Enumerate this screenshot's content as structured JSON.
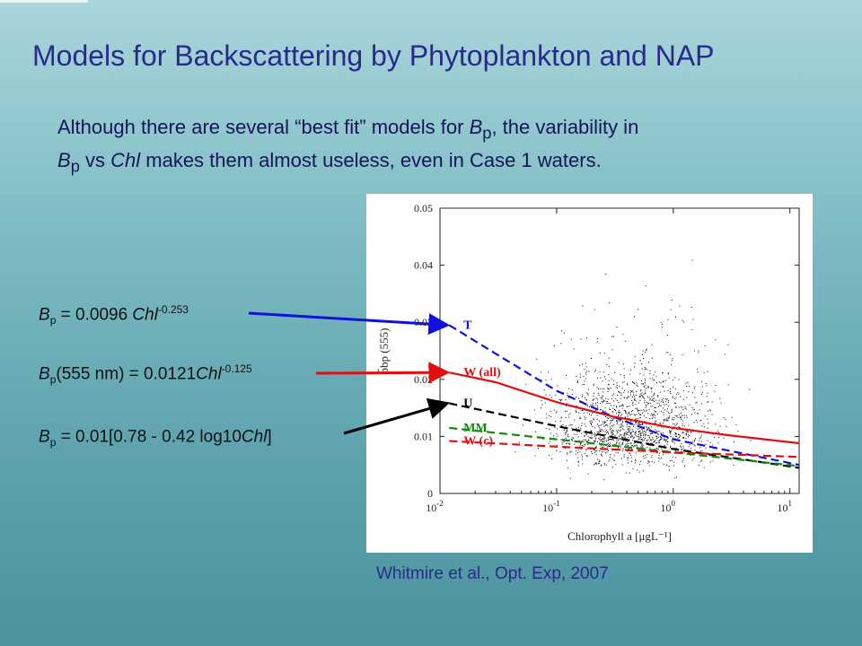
{
  "slide": {
    "title": "Models for Backscattering by Phytoplankton and NAP",
    "subtitle_parts": [
      "Although there are several “best fit” models for ",
      "B",
      "p",
      ", the variability in ",
      "B",
      "p",
      " vs ",
      "Chl",
      " makes them almost useless, even in Case 1 waters."
    ],
    "citation": "Whitmire et al., Opt. Exp, 2007",
    "equations": [
      {
        "id": "T",
        "b": "B",
        "sub": "p",
        "mid": " = 0.0096 ",
        "chl": "Chl",
        "sup": "-0.253",
        "tail": "",
        "color": "#1010e0"
      },
      {
        "id": "W",
        "b": "B",
        "sub": "p",
        "mid": "(555 nm) = 0.0121",
        "chl": "Chl",
        "sup": "-0.125",
        "tail": "",
        "color": "#e01010"
      },
      {
        "id": "U",
        "b": "B",
        "sub": "p",
        "mid": " = 0.01[0.78 - 0.42 log10",
        "chl": "Chl",
        "sup": "",
        "tail": "]",
        "color": "#000000"
      }
    ]
  },
  "chart_data": {
    "type": "scatter",
    "xlabel": "Chlorophyll a [μgL⁻¹]",
    "ylabel": "b̃bp (555)",
    "xscale": "log",
    "xlim": [
      0.01,
      12
    ],
    "ylim": [
      0,
      0.05
    ],
    "x_ticks": [
      {
        "value": 0.01,
        "base": "10",
        "exp": "-2"
      },
      {
        "value": 0.1,
        "base": "10",
        "exp": "-1"
      },
      {
        "value": 1,
        "base": "10",
        "exp": "0"
      },
      {
        "value": 10,
        "base": "10",
        "exp": "1"
      }
    ],
    "y_ticks": [
      "0",
      "0.01",
      "0.02",
      "0.03",
      "0.04",
      "0.05"
    ],
    "y_tick_values": [
      0,
      0.01,
      0.02,
      0.03,
      0.04,
      0.05
    ],
    "scatter_color": "#000000",
    "series": [
      {
        "name": "T",
        "color": "#1010e0",
        "x": [
          0.012,
          0.03,
          0.1,
          0.3,
          1,
          3,
          12
        ],
        "y": [
          0.0295,
          0.0245,
          0.018,
          0.0135,
          0.0095,
          0.0075,
          0.005
        ]
      },
      {
        "name": "W (all)",
        "color": "#e01010",
        "x": [
          0.012,
          0.03,
          0.1,
          0.3,
          1,
          3,
          12
        ],
        "y": [
          0.0212,
          0.0195,
          0.016,
          0.0135,
          0.0115,
          0.0102,
          0.0088
        ]
      },
      {
        "name": "U",
        "color": "#000000",
        "x": [
          0.012,
          0.1,
          1,
          12
        ],
        "y": [
          0.0158,
          0.0118,
          0.0078,
          0.0045
        ]
      },
      {
        "name": "MM",
        "color": "#118811",
        "x": [
          0.012,
          0.1,
          1,
          12
        ],
        "y": [
          0.0115,
          0.0095,
          0.0072,
          0.0048
        ]
      },
      {
        "name": "W (c)",
        "color": "#e01010",
        "x": [
          0.012,
          0.1,
          1,
          12
        ],
        "y": [
          0.0092,
          0.0082,
          0.0072,
          0.0064
        ]
      }
    ]
  }
}
